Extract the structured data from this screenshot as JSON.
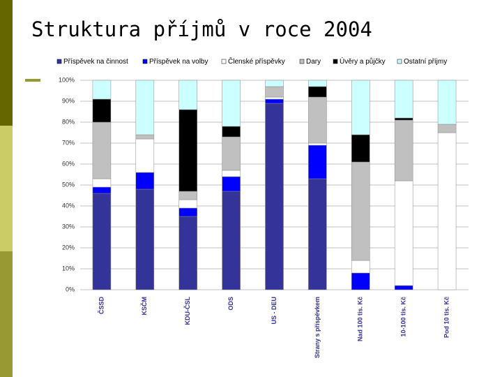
{
  "chart_data": {
    "type": "stacked_bar",
    "title": "Struktura příjmů v roce 2004",
    "categories": [
      "ČSSD",
      "KSČM",
      "KDU-ČSL",
      "ODS",
      "US - DEU",
      "Strany s příspěvkem",
      "Nad 100 tis. Kč",
      "10-100 tis. Kč",
      "Pod 10 tis. Kč"
    ],
    "series": [
      {
        "name": "Příspěvek na činnost",
        "color": "#333399",
        "values": [
          46,
          48,
          35,
          47,
          89,
          53,
          0,
          0,
          0
        ]
      },
      {
        "name": "Příspěvek na volby",
        "color": "#0000ff",
        "values": [
          3,
          8,
          4,
          7,
          2,
          16,
          8,
          2,
          0
        ]
      },
      {
        "name": "Členské příspěvky",
        "color": "#ffffff",
        "values": [
          4,
          16,
          4,
          3,
          1,
          1,
          6,
          50,
          75
        ]
      },
      {
        "name": "Dary",
        "color": "#c0c0c0",
        "values": [
          27,
          2,
          4,
          16,
          5,
          22,
          47,
          29,
          4
        ]
      },
      {
        "name": "Úvěry a půjčky",
        "color": "#000000",
        "values": [
          11,
          0,
          39,
          5,
          0,
          5,
          13,
          1,
          0
        ]
      },
      {
        "name": "Ostatní příjmy",
        "color": "#ccffff",
        "values": [
          9,
          26,
          14,
          22,
          3,
          3,
          26,
          18,
          21
        ]
      }
    ],
    "ylim": [
      0,
      100
    ],
    "yticks": [
      {
        "value": 0,
        "label": "0%"
      },
      {
        "value": 10,
        "label": "10%"
      },
      {
        "value": 20,
        "label": "20%"
      },
      {
        "value": 30,
        "label": "30%"
      },
      {
        "value": 40,
        "label": "40%"
      },
      {
        "value": 50,
        "label": "50%"
      },
      {
        "value": 60,
        "label": "60%"
      },
      {
        "value": 70,
        "label": "70%"
      },
      {
        "value": 80,
        "label": "80%"
      },
      {
        "value": 90,
        "label": "90%"
      },
      {
        "value": 100,
        "label": "100%"
      }
    ],
    "grid": true
  }
}
